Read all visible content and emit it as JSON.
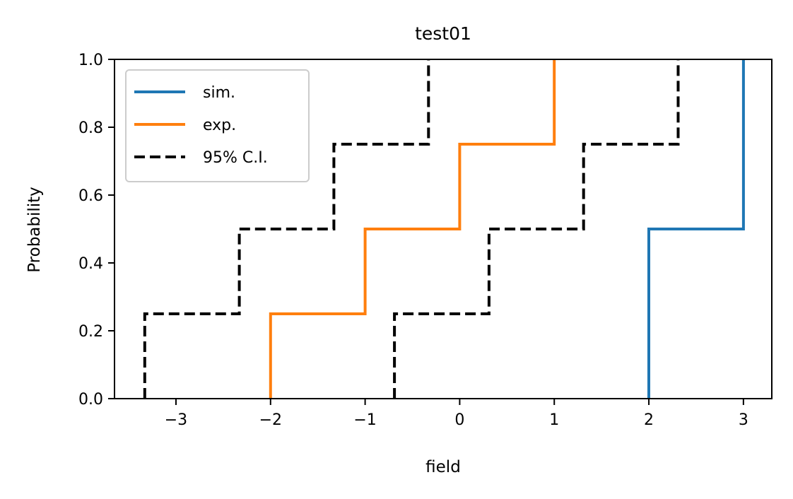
{
  "chart_data": {
    "type": "line",
    "title": "test01",
    "xlabel": "field",
    "ylabel": "Probability",
    "xlim": [
      -3.65,
      3.3
    ],
    "ylim": [
      0,
      1
    ],
    "xticks": [
      -3,
      -2,
      -1,
      0,
      1,
      2,
      3
    ],
    "xtick_labels": [
      "−3",
      "−2",
      "−1",
      "0",
      "1",
      "2",
      "3"
    ],
    "yticks": [
      0.0,
      0.2,
      0.4,
      0.6,
      0.8,
      1.0
    ],
    "ytick_labels": [
      "0.0",
      "0.2",
      "0.4",
      "0.6",
      "0.8",
      "1.0"
    ],
    "grid": false,
    "legend_position": "upper-left",
    "series": [
      {
        "name": "sim.",
        "color": "#1f77b4",
        "style": "solid",
        "steps": [
          [
            2,
            0
          ],
          [
            2,
            0.5
          ],
          [
            3,
            0.5
          ],
          [
            3,
            1.0
          ]
        ]
      },
      {
        "name": "exp.",
        "color": "#ff7f0e",
        "style": "solid",
        "steps": [
          [
            -2,
            0
          ],
          [
            -2,
            0.25
          ],
          [
            -1,
            0.25
          ],
          [
            -1,
            0.5
          ],
          [
            0,
            0.5
          ],
          [
            0,
            0.75
          ],
          [
            1,
            0.75
          ],
          [
            1,
            1.0
          ]
        ]
      },
      {
        "name": "95% C.I.",
        "color": "#000000",
        "style": "dashed",
        "steps": [
          [
            -3.33,
            0
          ],
          [
            -3.33,
            0.25
          ],
          [
            -2.33,
            0.25
          ],
          [
            -2.33,
            0.5
          ],
          [
            -1.33,
            0.5
          ],
          [
            -1.33,
            0.75
          ],
          [
            -0.33,
            0.75
          ],
          [
            -0.33,
            1.0
          ]
        ]
      },
      {
        "name": "",
        "color": "#000000",
        "style": "dashed",
        "steps": [
          [
            -0.69,
            0
          ],
          [
            -0.69,
            0.25
          ],
          [
            0.31,
            0.25
          ],
          [
            0.31,
            0.5
          ],
          [
            1.31,
            0.5
          ],
          [
            1.31,
            0.75
          ],
          [
            2.31,
            0.75
          ],
          [
            2.31,
            1.0
          ]
        ]
      }
    ]
  }
}
